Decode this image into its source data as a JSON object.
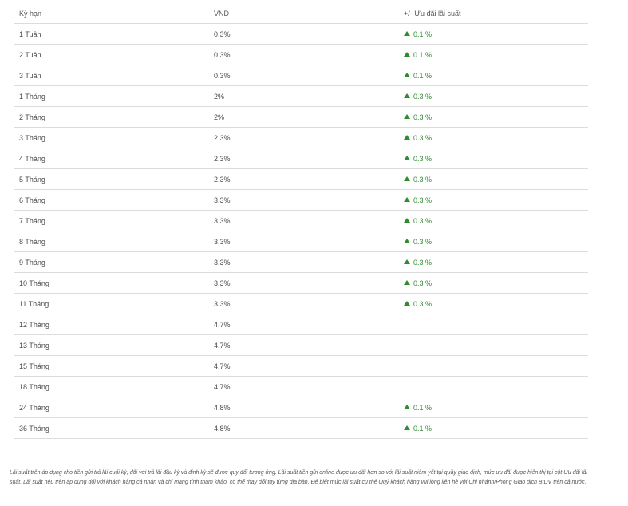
{
  "table": {
    "headers": {
      "term": "Kỳ hạn",
      "vnd": "VND",
      "promo": "+/- Ưu đãi lãi suất"
    },
    "rows": [
      {
        "term": "1 Tuần",
        "vnd": "0.3%",
        "promo": "0.1 %"
      },
      {
        "term": "2 Tuần",
        "vnd": "0.3%",
        "promo": "0.1 %"
      },
      {
        "term": "3 Tuần",
        "vnd": "0.3%",
        "promo": "0.1 %"
      },
      {
        "term": "1 Tháng",
        "vnd": "2%",
        "promo": "0.3 %"
      },
      {
        "term": "2 Tháng",
        "vnd": "2%",
        "promo": "0.3 %"
      },
      {
        "term": "3 Tháng",
        "vnd": "2.3%",
        "promo": "0.3 %"
      },
      {
        "term": "4 Tháng",
        "vnd": "2.3%",
        "promo": "0.3 %"
      },
      {
        "term": "5 Tháng",
        "vnd": "2.3%",
        "promo": "0.3 %"
      },
      {
        "term": "6 Tháng",
        "vnd": "3.3%",
        "promo": "0.3 %"
      },
      {
        "term": "7 Tháng",
        "vnd": "3.3%",
        "promo": "0.3 %"
      },
      {
        "term": "8 Tháng",
        "vnd": "3.3%",
        "promo": "0.3 %"
      },
      {
        "term": "9 Tháng",
        "vnd": "3.3%",
        "promo": "0.3 %"
      },
      {
        "term": "10 Tháng",
        "vnd": "3.3%",
        "promo": "0.3 %"
      },
      {
        "term": "11 Tháng",
        "vnd": "3.3%",
        "promo": "0.3 %"
      },
      {
        "term": "12 Tháng",
        "vnd": "4.7%",
        "promo": ""
      },
      {
        "term": "13 Tháng",
        "vnd": "4.7%",
        "promo": ""
      },
      {
        "term": "15 Tháng",
        "vnd": "4.7%",
        "promo": ""
      },
      {
        "term": "18 Tháng",
        "vnd": "4.7%",
        "promo": ""
      },
      {
        "term": "24 Tháng",
        "vnd": "4.8%",
        "promo": "0.1 %"
      },
      {
        "term": "36 Tháng",
        "vnd": "4.8%",
        "promo": "0.1 %"
      }
    ]
  },
  "up_arrow_icon": "triangle-up-icon",
  "colors": {
    "up_green": "#2e8b2e",
    "divider": "#dcdcdc"
  },
  "note": "Lãi suất trên áp dụng cho tiền gửi trả lãi cuối kỳ, đối với trả lãi đầu kỳ và định kỳ sẽ được quy đổi tương ứng. Lãi suất tiền gửi online được ưu đãi hơn so với lãi suất niêm yết tại quầy giao dịch, mức ưu đãi được hiển thị tại cột Ưu đãi lãi suất. Lãi suất nêu trên áp dụng đối với khách hàng cá nhân và chỉ mang tính tham khảo, có thể thay đổi tùy từng địa bàn. Để biết mức lãi suất cụ thể Quý khách hàng vui lòng liên hệ với Chi nhánh/Phòng Giao dịch BIDV trên cả nước."
}
